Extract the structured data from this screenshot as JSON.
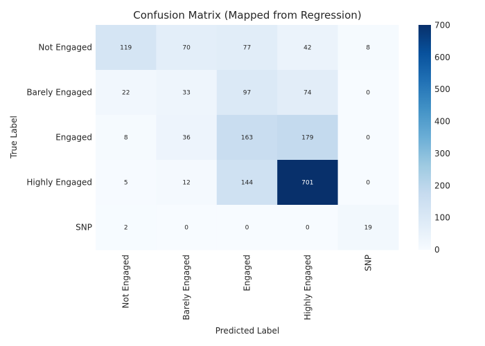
{
  "chart_data": {
    "type": "heatmap",
    "title": "Confusion Matrix (Mapped from Regression)",
    "xlabel": "Predicted Label",
    "ylabel": "True Label",
    "x_categories": [
      "Not Engaged",
      "Barely Engaged",
      "Engaged",
      "Highly Engaged",
      "SNP"
    ],
    "y_categories": [
      "Not Engaged",
      "Barely Engaged",
      "Engaged",
      "Highly Engaged",
      "SNP"
    ],
    "values": [
      [
        119,
        70,
        77,
        42,
        8
      ],
      [
        22,
        33,
        97,
        74,
        0
      ],
      [
        8,
        36,
        163,
        179,
        0
      ],
      [
        5,
        12,
        144,
        701,
        0
      ],
      [
        2,
        0,
        0,
        0,
        19
      ]
    ],
    "colorbar": {
      "range": [
        0,
        701
      ],
      "ticks": [
        0,
        100,
        200,
        300,
        400,
        500,
        600,
        700
      ]
    },
    "colormap": "Blues"
  }
}
